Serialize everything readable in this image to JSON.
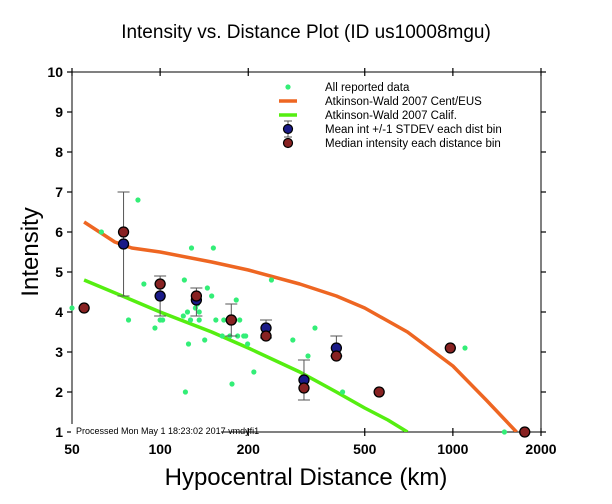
{
  "chart_data": {
    "type": "scatter",
    "title": "Intensity vs. Distance Plot (ID us10008mgu)",
    "xlabel": "Hypocentral Distance (km)",
    "ylabel": "Intensity",
    "xscale": "log",
    "xlim": [
      50,
      2000
    ],
    "ylim": [
      1,
      10
    ],
    "x_ticks": [
      50,
      100,
      200,
      500,
      1000,
      2000
    ],
    "x_tick_labels": [
      "50",
      "100",
      "200",
      "500",
      "1000",
      "2000"
    ],
    "y_ticks": [
      1,
      2,
      3,
      4,
      5,
      6,
      7,
      8,
      9,
      10
    ],
    "y_tick_labels": [
      "1",
      "2",
      "3",
      "4",
      "5",
      "6",
      "7",
      "8",
      "9",
      "10"
    ],
    "grid": false,
    "legend_position": "top-right",
    "annotation": "Processed Mon May  1 18:23:02 2017 vmdyfi1",
    "colors": {
      "all_data": "#33ee77",
      "cent_eus": "#ee6622",
      "calif": "#55ee11",
      "mean": "#1a1a88",
      "median": "#882222",
      "errorbar": "#555555"
    },
    "legend": [
      {
        "key": "all_data",
        "label": "All reported data",
        "marker": "dot"
      },
      {
        "key": "cent_eus",
        "label": "Atkinson-Wald 2007 Cent/EUS",
        "marker": "line"
      },
      {
        "key": "calif",
        "label": "Atkinson-Wald 2007 Calif.",
        "marker": "line"
      },
      {
        "key": "mean",
        "label": "Mean int +/-1 STDEV each dist bin",
        "marker": "circle-errorbar"
      },
      {
        "key": "median",
        "label": "Median intensity each distance bin",
        "marker": "circle"
      }
    ],
    "series": [
      {
        "name": "All reported data",
        "key": "all_data",
        "points": [
          [
            50,
            4.1
          ],
          [
            63,
            6.0
          ],
          [
            84,
            6.8
          ],
          [
            78,
            3.8
          ],
          [
            88,
            4.7
          ],
          [
            96,
            3.6
          ],
          [
            100,
            3.8
          ],
          [
            102,
            3.8
          ],
          [
            120,
            3.9
          ],
          [
            121,
            4.8
          ],
          [
            128,
            5.6
          ],
          [
            124,
            4.0
          ],
          [
            127,
            3.8
          ],
          [
            125,
            3.2
          ],
          [
            132,
            4.1
          ],
          [
            134,
            4.2
          ],
          [
            136,
            4.0
          ],
          [
            136,
            3.8
          ],
          [
            142,
            3.3
          ],
          [
            145,
            4.6
          ],
          [
            150,
            4.4
          ],
          [
            152,
            5.6
          ],
          [
            155,
            3.8
          ],
          [
            163,
            3.4
          ],
          [
            165,
            3.8
          ],
          [
            173,
            3.4
          ],
          [
            176,
            2.2
          ],
          [
            182,
            4.3
          ],
          [
            184,
            3.4
          ],
          [
            187,
            3.8
          ],
          [
            193,
            3.4
          ],
          [
            196,
            3.4
          ],
          [
            199,
            3.2
          ],
          [
            209,
            2.5
          ],
          [
            240,
            4.8
          ],
          [
            284,
            3.3
          ],
          [
            338,
            3.6
          ],
          [
            320,
            2.9
          ],
          [
            400,
            3.0
          ],
          [
            420,
            2.0
          ],
          [
            1100,
            3.1
          ],
          [
            1500,
            1.0
          ],
          [
            122,
            2.0
          ]
        ]
      },
      {
        "name": "Atkinson-Wald 2007 Cent/EUS",
        "key": "cent_eus",
        "points": [
          [
            55,
            6.25
          ],
          [
            70,
            5.75
          ],
          [
            80,
            5.6
          ],
          [
            100,
            5.5
          ],
          [
            150,
            5.25
          ],
          [
            200,
            5.05
          ],
          [
            300,
            4.7
          ],
          [
            400,
            4.4
          ],
          [
            500,
            4.1
          ],
          [
            700,
            3.5
          ],
          [
            1000,
            2.65
          ],
          [
            1300,
            1.8
          ],
          [
            1650,
            1.0
          ]
        ]
      },
      {
        "name": "Atkinson-Wald 2007 Calif.",
        "key": "calif",
        "points": [
          [
            55,
            4.8
          ],
          [
            80,
            4.3
          ],
          [
            100,
            4.0
          ],
          [
            150,
            3.5
          ],
          [
            200,
            3.1
          ],
          [
            300,
            2.5
          ],
          [
            400,
            2.0
          ],
          [
            500,
            1.6
          ],
          [
            600,
            1.3
          ],
          [
            700,
            1.0
          ]
        ]
      },
      {
        "name": "Mean int +/-1 STDEV each dist bin",
        "key": "mean",
        "points": [
          {
            "x": 75,
            "y": 5.7,
            "lo": 4.4,
            "hi": 7.0
          },
          {
            "x": 100,
            "y": 4.4,
            "lo": 3.9,
            "hi": 4.9
          },
          {
            "x": 133,
            "y": 4.3,
            "lo": 3.9,
            "hi": 4.6
          },
          {
            "x": 175,
            "y": 3.8,
            "lo": 3.4,
            "hi": 4.2
          },
          {
            "x": 230,
            "y": 3.6,
            "lo": 3.35,
            "hi": 3.8
          },
          {
            "x": 310,
            "y": 2.3,
            "lo": 1.8,
            "hi": 2.8
          },
          {
            "x": 400,
            "y": 3.1,
            "lo": 2.9,
            "hi": 3.4
          }
        ]
      },
      {
        "name": "Median intensity each distance bin",
        "key": "median",
        "points": [
          [
            55,
            4.1
          ],
          [
            75,
            6.0
          ],
          [
            100,
            4.7
          ],
          [
            133,
            4.4
          ],
          [
            175,
            3.8
          ],
          [
            230,
            3.4
          ],
          [
            310,
            2.1
          ],
          [
            400,
            2.9
          ],
          [
            560,
            2.0
          ],
          [
            980,
            3.1
          ],
          [
            1760,
            1.0
          ]
        ]
      }
    ]
  }
}
